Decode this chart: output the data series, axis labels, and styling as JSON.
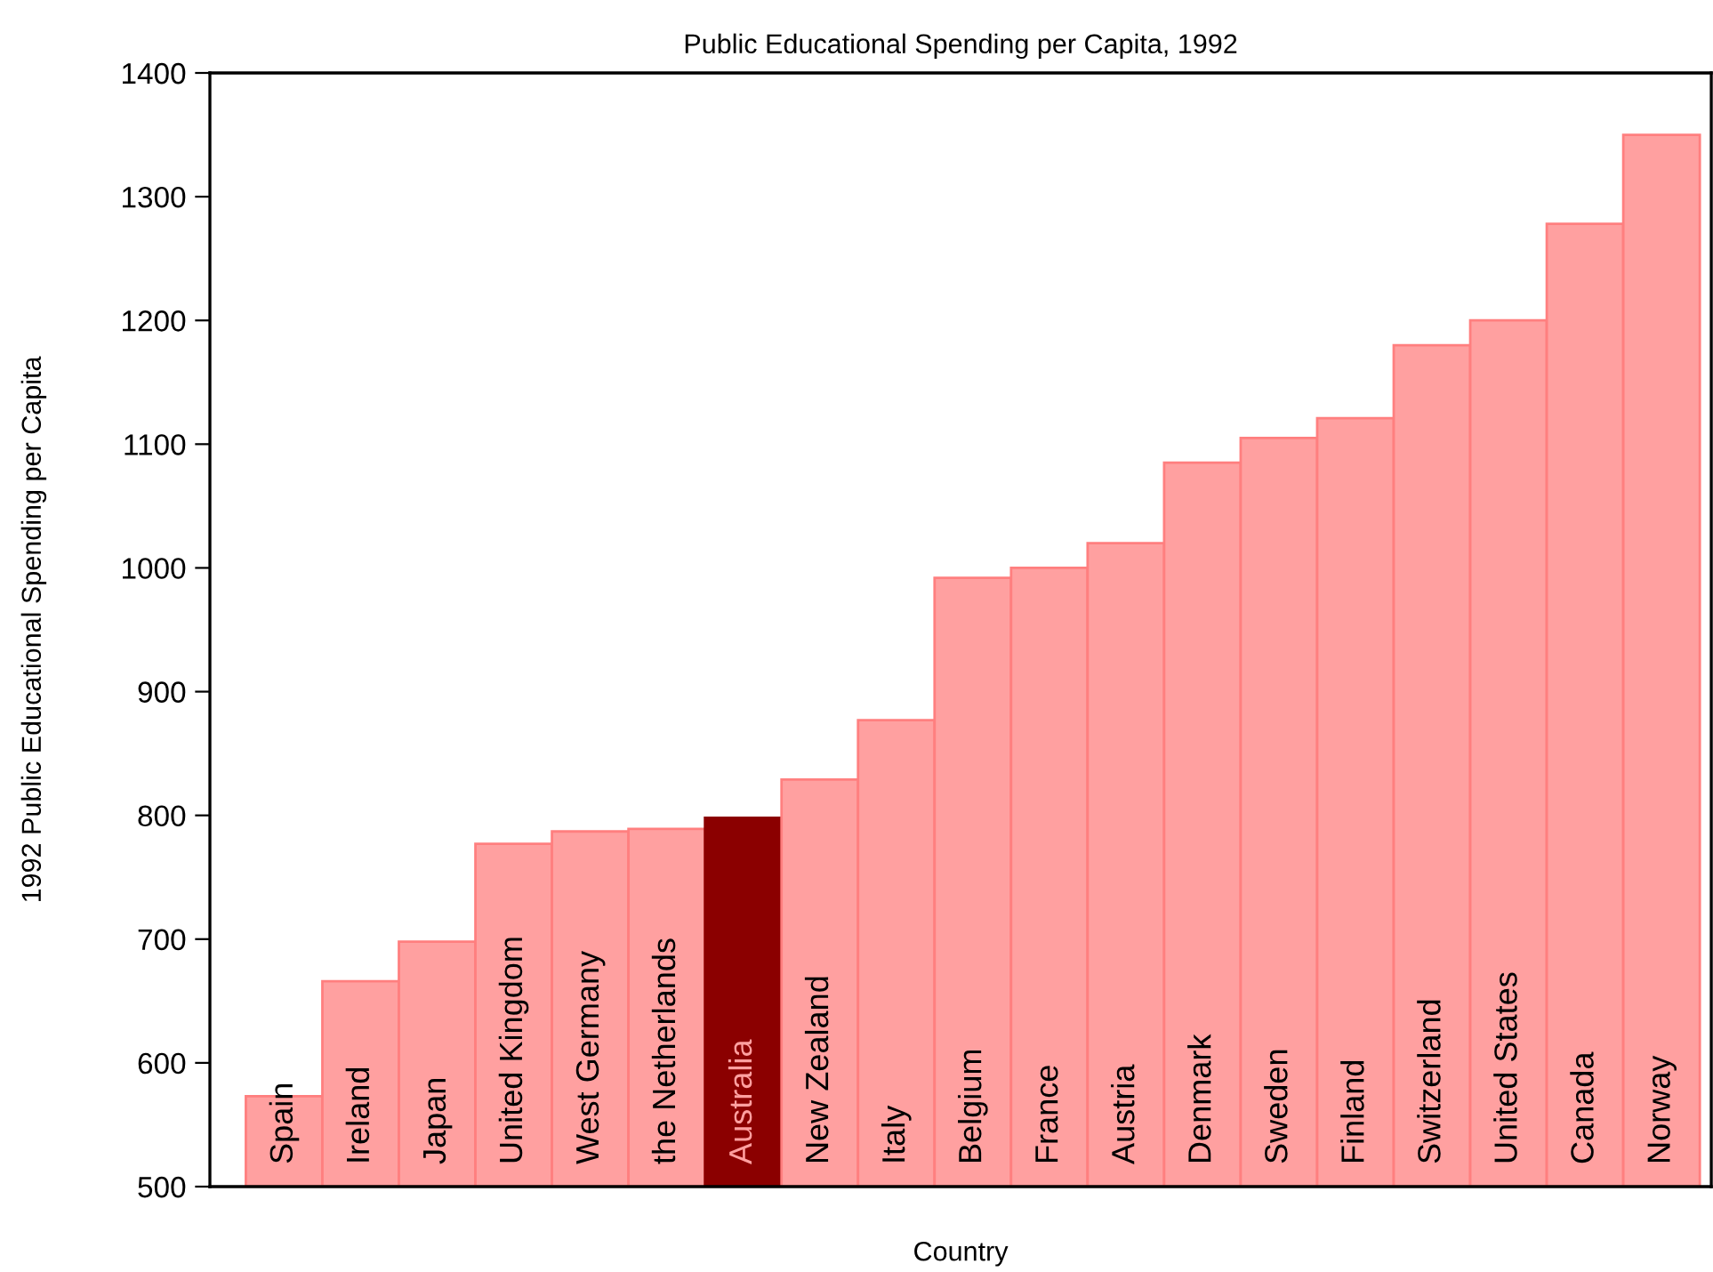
{
  "chart_data": {
    "type": "bar",
    "title": "Public Educational Spending per Capita, 1992",
    "xlabel": "Country",
    "ylabel": "1992 Public Educational Spending per Capita",
    "categories": [
      "Spain",
      "Ireland",
      "Japan",
      "United Kingdom",
      "West Germany",
      "the Netherlands",
      "Australia",
      "New Zealand",
      "Italy",
      "Belgium",
      "France",
      "Austria",
      "Denmark",
      "Sweden",
      "Finland",
      "Switzerland",
      "United States",
      "Canada",
      "Norway"
    ],
    "values": [
      573,
      666,
      698,
      777,
      787,
      789,
      798,
      829,
      877,
      992,
      1000,
      1020,
      1085,
      1105,
      1121,
      1180,
      1200,
      1278,
      1350
    ],
    "colors": [
      "#ffa0a0",
      "#ffa0a0",
      "#ffa0a0",
      "#ffa0a0",
      "#ffa0a0",
      "#ffa0a0",
      "#8b0000",
      "#ffa0a0",
      "#ffa0a0",
      "#ffa0a0",
      "#ffa0a0",
      "#ffa0a0",
      "#ffa0a0",
      "#ffa0a0",
      "#ffa0a0",
      "#ffa0a0",
      "#ffa0a0",
      "#ffa0a0",
      "#ffa0a0"
    ],
    "ylim": [
      500,
      1400
    ],
    "yticks": [
      500,
      600,
      700,
      800,
      900,
      1000,
      1100,
      1200,
      1300,
      1400
    ],
    "grid": false,
    "legend": false
  }
}
